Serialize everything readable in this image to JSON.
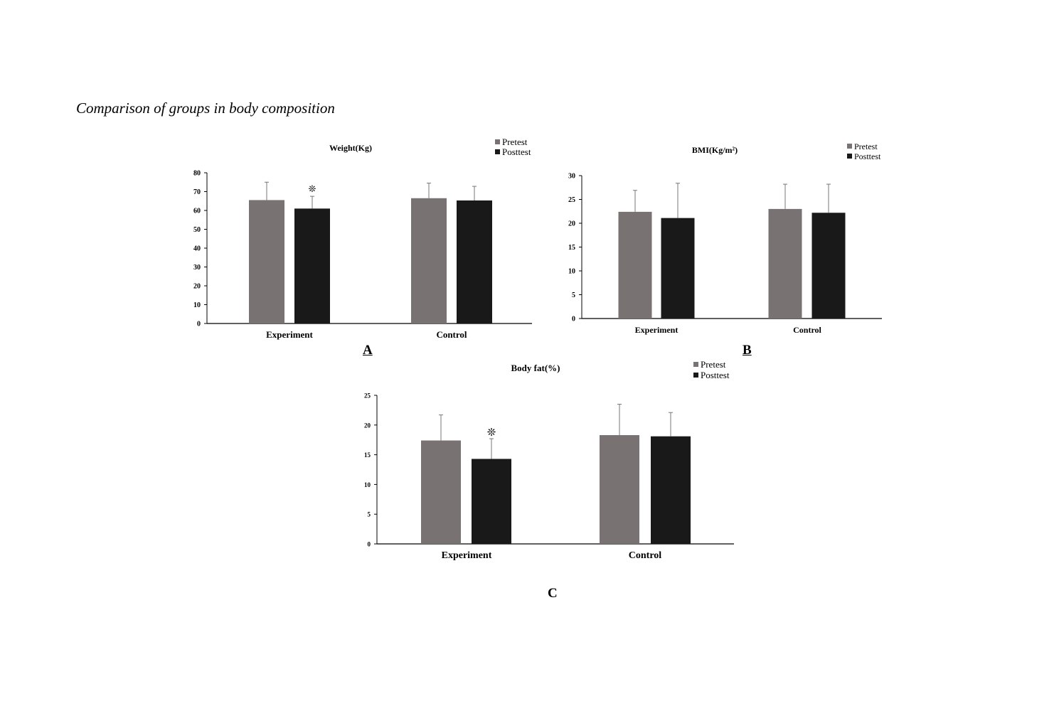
{
  "caption": "Comparison of groups in body composition",
  "panels": {
    "a": "A",
    "b": "B",
    "c": "C"
  },
  "colors": {
    "pretest": "#787372",
    "posttest": "#191919",
    "axis": "#000000",
    "errorbar": "#777777"
  },
  "significance_marker": "❊",
  "chart_data": [
    {
      "type": "bar",
      "title": "Weight(Kg)",
      "panel": "A",
      "categories": [
        "Experiment",
        "Control"
      ],
      "series": [
        {
          "name": "Pretest",
          "values": [
            65.5,
            66.5
          ],
          "errors": [
            9.5,
            8
          ]
        },
        {
          "name": "Posttest",
          "values": [
            61,
            65.3
          ],
          "errors": [
            6.5,
            7.5
          ]
        }
      ],
      "ylim": [
        0,
        80
      ],
      "yticks": [
        0,
        10,
        20,
        30,
        40,
        50,
        60,
        70,
        80
      ],
      "significant": [
        [
          false,
          false
        ],
        [
          true,
          false
        ]
      ],
      "legend": "top-right",
      "xlabel": "",
      "ylabel": ""
    },
    {
      "type": "bar",
      "title": "BMI(Kg/m²)",
      "panel": "B",
      "categories": [
        "Experiment",
        "Control"
      ],
      "series": [
        {
          "name": "Pretest",
          "values": [
            22.4,
            23
          ],
          "errors": [
            4.5,
            5.2
          ]
        },
        {
          "name": "Posttest",
          "values": [
            21.1,
            22.2
          ],
          "errors": [
            7.3,
            6
          ]
        }
      ],
      "ylim": [
        0,
        30
      ],
      "yticks": [
        0,
        5,
        10,
        15,
        20,
        25,
        30
      ],
      "significant": [
        [
          false,
          false
        ],
        [
          false,
          false
        ]
      ],
      "legend": "top-right",
      "xlabel": "",
      "ylabel": ""
    },
    {
      "type": "bar",
      "title": "Body fat(%)",
      "panel": "C",
      "categories": [
        "Experiment",
        "Control"
      ],
      "series": [
        {
          "name": "Pretest",
          "values": [
            17.4,
            18.3
          ],
          "errors": [
            4.3,
            5.2
          ]
        },
        {
          "name": "Posttest",
          "values": [
            14.3,
            18.1
          ],
          "errors": [
            3.4,
            4
          ]
        }
      ],
      "ylim": [
        0,
        25
      ],
      "yticks": [
        0,
        5,
        10,
        15,
        20,
        25
      ],
      "significant": [
        [
          false,
          false
        ],
        [
          true,
          false
        ]
      ],
      "legend": "top-right",
      "xlabel": "",
      "ylabel": ""
    }
  ]
}
